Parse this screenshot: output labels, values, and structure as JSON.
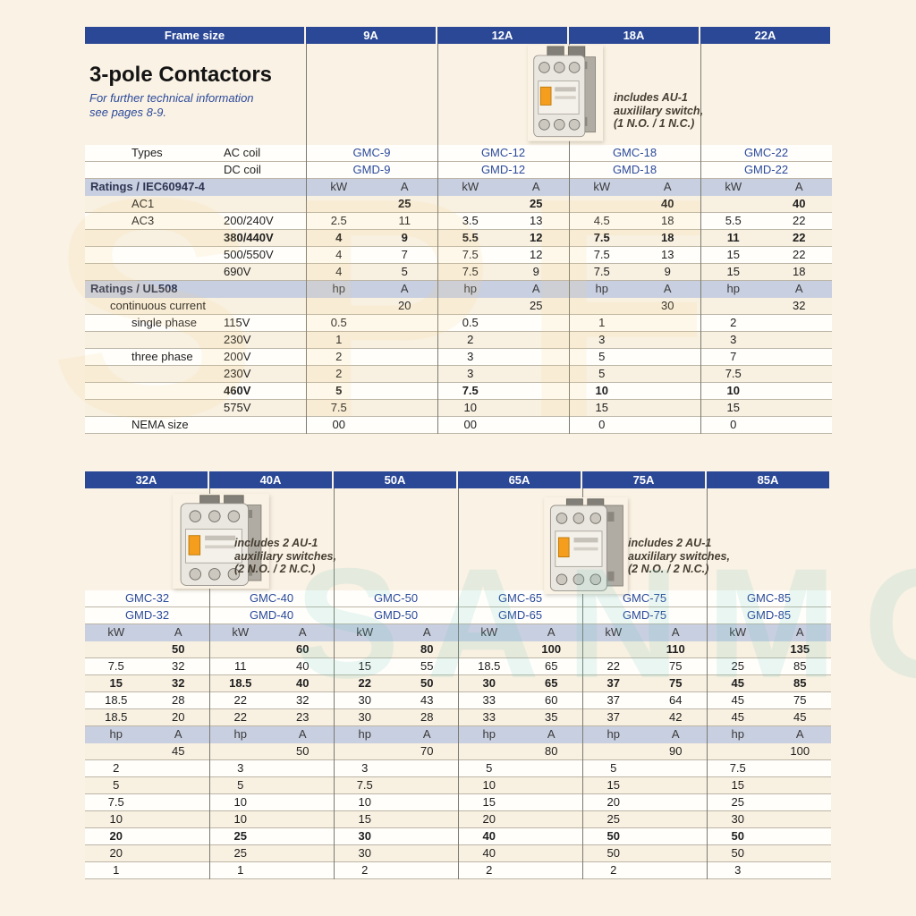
{
  "watermark": {
    "top_text": "SPF",
    "bottom_text": "SANMOH"
  },
  "top_table": {
    "frame_label": "Frame size",
    "frames": [
      "9A",
      "12A",
      "18A",
      "22A"
    ],
    "title": "3-pole Contactors",
    "subtitle": "For further technical information\nsee pages 8-9.",
    "photo_note": "includes AU-1\nauxililary switch,\n(1 N.O. / 1 N.C.)",
    "rows": [
      {
        "k": "model",
        "l1": "Types",
        "l2": "AC coil",
        "vals": [
          "GMC-9",
          "GMC-12",
          "GMC-18",
          "GMC-22"
        ]
      },
      {
        "k": "model",
        "l1": "",
        "l2": "DC coil",
        "vals": [
          "GMD-9",
          "GMD-12",
          "GMD-18",
          "GMD-22"
        ]
      },
      {
        "k": "band",
        "label": "Ratings / IEC60947-4",
        "u": [
          "kW",
          "A"
        ]
      },
      {
        "k": "d",
        "l1": "AC1",
        "l2": "",
        "b": true,
        "cells": [
          [
            "",
            "25"
          ],
          [
            "",
            "25"
          ],
          [
            "",
            "40"
          ],
          [
            "",
            "40"
          ]
        ]
      },
      {
        "k": "d",
        "l1": "AC3",
        "l2": "200/240V",
        "cells": [
          [
            "2.5",
            "11"
          ],
          [
            "3.5",
            "13"
          ],
          [
            "4.5",
            "18"
          ],
          [
            "5.5",
            "22"
          ]
        ]
      },
      {
        "k": "d",
        "l1": "",
        "l2": "380/440V",
        "b": true,
        "cells": [
          [
            "4",
            "9"
          ],
          [
            "5.5",
            "12"
          ],
          [
            "7.5",
            "18"
          ],
          [
            "11",
            "22"
          ]
        ]
      },
      {
        "k": "d",
        "l1": "",
        "l2": "500/550V",
        "cells": [
          [
            "4",
            "7"
          ],
          [
            "7.5",
            "12"
          ],
          [
            "7.5",
            "13"
          ],
          [
            "15",
            "22"
          ]
        ]
      },
      {
        "k": "d",
        "l1": "",
        "l2": "690V",
        "cells": [
          [
            "4",
            "5"
          ],
          [
            "7.5",
            "9"
          ],
          [
            "7.5",
            "9"
          ],
          [
            "15",
            "18"
          ]
        ]
      },
      {
        "k": "band",
        "label": "Ratings / UL508",
        "u": [
          "hp",
          "A"
        ]
      },
      {
        "k": "d",
        "l1": "continuous current",
        "wide": true,
        "pad": 28,
        "cells": [
          [
            "",
            "20"
          ],
          [
            "",
            "25"
          ],
          [
            "",
            "30"
          ],
          [
            "",
            "32"
          ]
        ]
      },
      {
        "k": "d",
        "l1": "single phase",
        "l2": "115V",
        "cells": [
          [
            "0.5",
            ""
          ],
          [
            "0.5",
            ""
          ],
          [
            "1",
            ""
          ],
          [
            "2",
            ""
          ]
        ]
      },
      {
        "k": "d",
        "l1": "",
        "l2": "230V",
        "cells": [
          [
            "1",
            ""
          ],
          [
            "2",
            ""
          ],
          [
            "3",
            ""
          ],
          [
            "3",
            ""
          ]
        ]
      },
      {
        "k": "d",
        "l1": "three phase",
        "l2": "200V",
        "cells": [
          [
            "2",
            ""
          ],
          [
            "3",
            ""
          ],
          [
            "5",
            ""
          ],
          [
            "7",
            ""
          ]
        ]
      },
      {
        "k": "d",
        "l1": "",
        "l2": "230V",
        "cells": [
          [
            "2",
            ""
          ],
          [
            "3",
            ""
          ],
          [
            "5",
            ""
          ],
          [
            "7.5",
            ""
          ]
        ]
      },
      {
        "k": "d",
        "l1": "",
        "l2": "460V",
        "b": true,
        "cells": [
          [
            "5",
            ""
          ],
          [
            "7.5",
            ""
          ],
          [
            "10",
            ""
          ],
          [
            "10",
            ""
          ]
        ]
      },
      {
        "k": "d",
        "l1": "",
        "l2": "575V",
        "cells": [
          [
            "7.5",
            ""
          ],
          [
            "10",
            ""
          ],
          [
            "15",
            ""
          ],
          [
            "15",
            ""
          ]
        ]
      },
      {
        "k": "d",
        "l1": "NEMA size",
        "wide": true,
        "pad": 52,
        "cells": [
          [
            "00",
            ""
          ],
          [
            "00",
            ""
          ],
          [
            "0",
            ""
          ],
          [
            "0",
            ""
          ]
        ]
      }
    ]
  },
  "bottom_table": {
    "frames": [
      "32A",
      "40A",
      "50A",
      "65A",
      "75A",
      "85A"
    ],
    "photo_note": "includes 2 AU-1\nauxililary switches,\n(2 N.O. / 2 N.C.)",
    "rows": [
      {
        "k": "model",
        "vals": [
          "GMC-32",
          "GMC-40",
          "GMC-50",
          "GMC-65",
          "GMC-75",
          "GMC-85"
        ]
      },
      {
        "k": "model",
        "vals": [
          "GMD-32",
          "GMD-40",
          "GMD-50",
          "GMD-65",
          "GMD-75",
          "GMD-85"
        ]
      },
      {
        "k": "band",
        "u": [
          "kW",
          "A"
        ]
      },
      {
        "k": "d",
        "b": true,
        "cells": [
          [
            "",
            "50"
          ],
          [
            "",
            "60"
          ],
          [
            "",
            "80"
          ],
          [
            "",
            "100"
          ],
          [
            "",
            "110"
          ],
          [
            "",
            "135"
          ]
        ]
      },
      {
        "k": "d",
        "cells": [
          [
            "7.5",
            "32"
          ],
          [
            "11",
            "40"
          ],
          [
            "15",
            "55"
          ],
          [
            "18.5",
            "65"
          ],
          [
            "22",
            "75"
          ],
          [
            "25",
            "85"
          ]
        ]
      },
      {
        "k": "d",
        "b": true,
        "cells": [
          [
            "15",
            "32"
          ],
          [
            "18.5",
            "40"
          ],
          [
            "22",
            "50"
          ],
          [
            "30",
            "65"
          ],
          [
            "37",
            "75"
          ],
          [
            "45",
            "85"
          ]
        ]
      },
      {
        "k": "d",
        "cells": [
          [
            "18.5",
            "28"
          ],
          [
            "22",
            "32"
          ],
          [
            "30",
            "43"
          ],
          [
            "33",
            "60"
          ],
          [
            "37",
            "64"
          ],
          [
            "45",
            "75"
          ]
        ]
      },
      {
        "k": "d",
        "cells": [
          [
            "18.5",
            "20"
          ],
          [
            "22",
            "23"
          ],
          [
            "30",
            "28"
          ],
          [
            "33",
            "35"
          ],
          [
            "37",
            "42"
          ],
          [
            "45",
            "45"
          ]
        ]
      },
      {
        "k": "band",
        "u": [
          "hp",
          "A"
        ]
      },
      {
        "k": "d",
        "cells": [
          [
            "",
            "45"
          ],
          [
            "",
            "50"
          ],
          [
            "",
            "70"
          ],
          [
            "",
            "80"
          ],
          [
            "",
            "90"
          ],
          [
            "",
            "100"
          ]
        ]
      },
      {
        "k": "d",
        "cells": [
          [
            "2",
            ""
          ],
          [
            "3",
            ""
          ],
          [
            "3",
            ""
          ],
          [
            "5",
            ""
          ],
          [
            "5",
            ""
          ],
          [
            "7.5",
            ""
          ]
        ]
      },
      {
        "k": "d",
        "cells": [
          [
            "5",
            ""
          ],
          [
            "5",
            ""
          ],
          [
            "7.5",
            ""
          ],
          [
            "10",
            ""
          ],
          [
            "15",
            ""
          ],
          [
            "15",
            ""
          ]
        ]
      },
      {
        "k": "d",
        "cells": [
          [
            "7.5",
            ""
          ],
          [
            "10",
            ""
          ],
          [
            "10",
            ""
          ],
          [
            "15",
            ""
          ],
          [
            "20",
            ""
          ],
          [
            "25",
            ""
          ]
        ]
      },
      {
        "k": "d",
        "cells": [
          [
            "10",
            ""
          ],
          [
            "10",
            ""
          ],
          [
            "15",
            ""
          ],
          [
            "20",
            ""
          ],
          [
            "25",
            ""
          ],
          [
            "30",
            ""
          ]
        ]
      },
      {
        "k": "d",
        "b": true,
        "cells": [
          [
            "20",
            ""
          ],
          [
            "25",
            ""
          ],
          [
            "30",
            ""
          ],
          [
            "40",
            ""
          ],
          [
            "50",
            ""
          ],
          [
            "50",
            ""
          ]
        ]
      },
      {
        "k": "d",
        "cells": [
          [
            "20",
            ""
          ],
          [
            "25",
            ""
          ],
          [
            "30",
            ""
          ],
          [
            "40",
            ""
          ],
          [
            "50",
            ""
          ],
          [
            "50",
            ""
          ]
        ]
      },
      {
        "k": "d",
        "cells": [
          [
            "1",
            ""
          ],
          [
            "1",
            ""
          ],
          [
            "2",
            ""
          ],
          [
            "2",
            ""
          ],
          [
            "2",
            ""
          ],
          [
            "3",
            ""
          ]
        ]
      }
    ]
  }
}
